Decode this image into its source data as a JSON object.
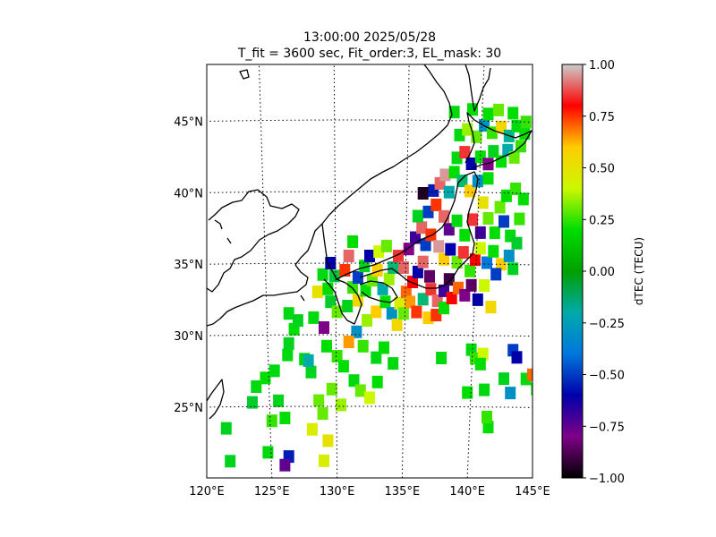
{
  "title_line1": "13:00:00 2025/05/28",
  "title_line2": "T_fit = 3600 sec, Fit_order:3, EL_mask: 30",
  "chart_data": {
    "type": "heatmap",
    "map_projection": "conic",
    "lon_range": [
      120,
      145
    ],
    "lat_range": [
      20,
      49
    ],
    "lon_ticks": [
      {
        "value": 120,
        "label": "120°E"
      },
      {
        "value": 125,
        "label": "125°E"
      },
      {
        "value": 130,
        "label": "130°E"
      },
      {
        "value": 135,
        "label": "135°E"
      },
      {
        "value": 140,
        "label": "140°E"
      },
      {
        "value": 145,
        "label": "145°E"
      }
    ],
    "lat_ticks": [
      {
        "value": 25,
        "label": "25°N"
      },
      {
        "value": 30,
        "label": "30°N"
      },
      {
        "value": 35,
        "label": "35°N"
      },
      {
        "value": 40,
        "label": "40°N"
      },
      {
        "value": 45,
        "label": "45°N"
      }
    ],
    "graticule": "dotted",
    "colorbar": {
      "label": "dTEC (TECU)",
      "range": [
        -1.0,
        1.0
      ],
      "colormap": "nipy_spectral",
      "ticks": [
        {
          "value": 1.0,
          "label": "1.00"
        },
        {
          "value": 0.75,
          "label": "0.75"
        },
        {
          "value": 0.5,
          "label": "0.50"
        },
        {
          "value": 0.25,
          "label": "0.25"
        },
        {
          "value": 0.0,
          "label": "0.00"
        },
        {
          "value": -0.25,
          "label": "−0.25"
        },
        {
          "value": -0.5,
          "label": "−0.50"
        },
        {
          "value": -0.75,
          "label": "−0.75"
        },
        {
          "value": -1.0,
          "label": "−1.00"
        }
      ]
    },
    "points": [
      [
        121.5,
        23.5,
        0.1
      ],
      [
        121.8,
        21.2,
        0.1
      ],
      [
        123.5,
        25.3,
        0.05
      ],
      [
        123.8,
        26.4,
        0.15
      ],
      [
        125.2,
        27.5,
        0.15
      ],
      [
        124.5,
        27.0,
        0.2
      ],
      [
        125.5,
        25.4,
        0.1
      ],
      [
        126.0,
        24.2,
        0.2
      ],
      [
        125.0,
        24.0,
        0.25
      ],
      [
        126.2,
        28.6,
        0.15
      ],
      [
        126.3,
        29.4,
        0.1
      ],
      [
        126.7,
        30.4,
        0.2
      ],
      [
        127.5,
        28.3,
        0.15
      ],
      [
        128.0,
        27.4,
        0.1
      ],
      [
        128.6,
        25.4,
        0.3
      ],
      [
        128.9,
        24.5,
        0.3
      ],
      [
        128.1,
        23.4,
        0.45
      ],
      [
        129.3,
        22.6,
        0.5
      ],
      [
        127.8,
        28.2,
        -0.2
      ],
      [
        126.3,
        31.5,
        0.15
      ],
      [
        127.0,
        31.0,
        0.1
      ],
      [
        128.2,
        31.2,
        0.15
      ],
      [
        129.0,
        30.5,
        -0.8
      ],
      [
        129.2,
        29.2,
        0.2
      ],
      [
        130.0,
        28.5,
        0.25
      ],
      [
        130.5,
        27.8,
        0.2
      ],
      [
        131.3,
        26.8,
        0.15
      ],
      [
        131.8,
        26.1,
        0.3
      ],
      [
        132.5,
        25.6,
        0.4
      ],
      [
        133.1,
        26.7,
        0.2
      ],
      [
        130.3,
        25.1,
        0.35
      ],
      [
        129.6,
        26.2,
        0.3
      ],
      [
        132.0,
        29.2,
        0.25
      ],
      [
        133.0,
        28.4,
        0.15
      ],
      [
        133.6,
        29.1,
        0.2
      ],
      [
        134.3,
        28.0,
        0.15
      ],
      [
        131.5,
        30.2,
        -0.3
      ],
      [
        130.9,
        29.5,
        0.65
      ],
      [
        124.7,
        21.8,
        0.15
      ],
      [
        126.3,
        21.5,
        -0.55
      ],
      [
        126.0,
        20.9,
        -0.75
      ],
      [
        129.0,
        21.2,
        0.45
      ],
      [
        128.5,
        33.0,
        0.5
      ],
      [
        128.9,
        34.2,
        0.15
      ],
      [
        129.5,
        35.0,
        -0.6
      ],
      [
        129.8,
        34.1,
        0.0
      ],
      [
        130.6,
        34.5,
        0.75
      ],
      [
        130.9,
        35.5,
        0.9
      ],
      [
        131.2,
        36.5,
        0.2
      ],
      [
        129.3,
        33.2,
        0.2
      ],
      [
        129.5,
        32.3,
        0.05
      ],
      [
        130.0,
        31.6,
        0.3
      ],
      [
        130.8,
        32.0,
        0.1
      ],
      [
        131.2,
        33.3,
        0.25
      ],
      [
        131.6,
        34.0,
        -0.5
      ],
      [
        132.1,
        34.8,
        0.1
      ],
      [
        132.5,
        35.5,
        -0.6
      ],
      [
        133.2,
        35.8,
        0.4
      ],
      [
        133.8,
        36.2,
        0.3
      ],
      [
        131.6,
        32.4,
        0.55
      ],
      [
        132.2,
        33.1,
        0.2
      ],
      [
        132.7,
        33.8,
        0.3
      ],
      [
        133.1,
        34.5,
        0.6
      ],
      [
        133.5,
        33.2,
        -0.2
      ],
      [
        134.0,
        33.9,
        0.35
      ],
      [
        134.3,
        34.7,
        -0.1
      ],
      [
        134.7,
        35.5,
        0.85
      ],
      [
        135.1,
        34.7,
        0.9
      ],
      [
        132.3,
        31.0,
        0.35
      ],
      [
        133.0,
        31.6,
        0.6
      ],
      [
        133.7,
        32.3,
        0.2
      ],
      [
        134.2,
        31.5,
        -0.3
      ],
      [
        134.8,
        32.2,
        0.45
      ],
      [
        135.3,
        33.0,
        0.7
      ],
      [
        135.8,
        33.7,
        0.8
      ],
      [
        136.2,
        34.4,
        -0.6
      ],
      [
        136.6,
        35.1,
        0.9
      ],
      [
        137.1,
        34.1,
        -0.85
      ],
      [
        134.6,
        30.7,
        0.55
      ],
      [
        135.1,
        31.5,
        0.3
      ],
      [
        135.6,
        32.3,
        0.65
      ],
      [
        136.1,
        31.6,
        0.75
      ],
      [
        136.6,
        32.5,
        -0.1
      ],
      [
        137.2,
        33.2,
        0.85
      ],
      [
        137.7,
        32.4,
        0.9
      ],
      [
        138.2,
        33.1,
        -0.7
      ],
      [
        138.6,
        33.9,
        -0.9
      ],
      [
        137.0,
        31.2,
        0.6
      ],
      [
        137.6,
        31.4,
        0.75
      ],
      [
        138.2,
        31.9,
        0.2
      ],
      [
        138.8,
        32.6,
        0.8
      ],
      [
        139.3,
        33.3,
        0.7
      ],
      [
        139.8,
        32.8,
        -0.8
      ],
      [
        140.3,
        33.5,
        -0.85
      ],
      [
        140.8,
        32.5,
        -0.6
      ],
      [
        141.3,
        33.5,
        0.4
      ],
      [
        141.8,
        32.0,
        0.55
      ],
      [
        135.5,
        36.0,
        -0.8
      ],
      [
        136.0,
        36.8,
        -0.7
      ],
      [
        136.5,
        37.5,
        0.9
      ],
      [
        136.8,
        36.3,
        -0.5
      ],
      [
        137.2,
        37.0,
        0.75
      ],
      [
        137.8,
        36.2,
        0.95
      ],
      [
        138.2,
        35.3,
        0.6
      ],
      [
        138.7,
        36.0,
        -0.6
      ],
      [
        139.2,
        35.1,
        0.3
      ],
      [
        139.7,
        35.8,
        0.85
      ],
      [
        140.2,
        34.5,
        0.25
      ],
      [
        140.6,
        35.3,
        0.8
      ],
      [
        141.0,
        36.1,
        0.4
      ],
      [
        141.5,
        35.1,
        -0.4
      ],
      [
        142.0,
        35.9,
        0.2
      ],
      [
        142.6,
        35.0,
        0.6
      ],
      [
        143.2,
        35.6,
        -0.3
      ],
      [
        142.2,
        34.3,
        -0.5
      ],
      [
        143.5,
        34.7,
        0.1
      ],
      [
        136.2,
        38.3,
        0.1
      ],
      [
        137.0,
        38.6,
        -0.5
      ],
      [
        137.6,
        39.1,
        0.75
      ],
      [
        138.2,
        38.3,
        0.9
      ],
      [
        138.6,
        37.4,
        -0.75
      ],
      [
        139.2,
        38.0,
        0.15
      ],
      [
        139.8,
        37.0,
        0.2
      ],
      [
        140.4,
        38.1,
        0.85
      ],
      [
        141.0,
        37.2,
        -0.7
      ],
      [
        141.6,
        38.2,
        0.3
      ],
      [
        142.1,
        37.2,
        0.2
      ],
      [
        142.8,
        38.0,
        -0.5
      ],
      [
        143.3,
        37.0,
        0.15
      ],
      [
        144.0,
        38.2,
        0.25
      ],
      [
        143.8,
        36.5,
        0.05
      ],
      [
        142.5,
        39.0,
        0.3
      ],
      [
        143.0,
        39.8,
        0.2
      ],
      [
        143.7,
        40.3,
        0.25
      ],
      [
        144.3,
        39.6,
        0.2
      ],
      [
        141.2,
        39.3,
        0.5
      ],
      [
        136.6,
        39.9,
        -0.95
      ],
      [
        137.4,
        40.1,
        -0.55
      ],
      [
        137.9,
        40.6,
        0.9
      ],
      [
        138.6,
        40.0,
        -0.2
      ],
      [
        138.3,
        41.2,
        0.95
      ],
      [
        139.0,
        41.4,
        0.2
      ],
      [
        139.6,
        40.8,
        -0.1
      ],
      [
        140.2,
        40.1,
        0.6
      ],
      [
        140.8,
        40.8,
        -0.3
      ],
      [
        141.6,
        41.0,
        0.2
      ],
      [
        139.2,
        42.4,
        0.15
      ],
      [
        139.8,
        42.8,
        0.85
      ],
      [
        140.3,
        42.0,
        -0.6
      ],
      [
        141.0,
        42.5,
        0.2
      ],
      [
        141.6,
        42.0,
        -0.8
      ],
      [
        142.0,
        42.9,
        0.1
      ],
      [
        142.6,
        42.2,
        0.2
      ],
      [
        143.1,
        43.0,
        -0.2
      ],
      [
        143.6,
        42.5,
        0.3
      ],
      [
        144.1,
        43.3,
        0.25
      ],
      [
        139.4,
        44.0,
        0.15
      ],
      [
        140.0,
        44.4,
        0.35
      ],
      [
        140.7,
        43.9,
        0.3
      ],
      [
        141.3,
        44.7,
        -0.3
      ],
      [
        141.9,
        44.2,
        0.25
      ],
      [
        142.6,
        44.6,
        0.55
      ],
      [
        143.2,
        44.0,
        -0.15
      ],
      [
        143.8,
        44.7,
        0.15
      ],
      [
        144.4,
        44.2,
        0.2
      ],
      [
        143.5,
        45.6,
        0.2
      ],
      [
        139.0,
        45.6,
        0.15
      ],
      [
        140.4,
        45.8,
        0.2
      ],
      [
        141.6,
        45.5,
        0.2
      ],
      [
        142.4,
        45.8,
        0.3
      ],
      [
        144.5,
        45.0,
        0.25
      ],
      [
        140.3,
        29.0,
        0.15
      ],
      [
        140.6,
        28.4,
        0.25
      ],
      [
        141.2,
        28.7,
        0.4
      ],
      [
        141.0,
        28.0,
        0.2
      ],
      [
        142.8,
        27.0,
        0.1
      ],
      [
        143.5,
        29.0,
        -0.5
      ],
      [
        143.8,
        28.5,
        -0.6
      ],
      [
        138.0,
        28.4,
        0.15
      ],
      [
        140.0,
        26.0,
        0.2
      ],
      [
        141.3,
        26.2,
        0.15
      ],
      [
        143.3,
        26.0,
        -0.3
      ],
      [
        144.5,
        27.0,
        0.15
      ],
      [
        145.0,
        27.3,
        0.7
      ],
      [
        145.3,
        26.3,
        0.2
      ],
      [
        141.6,
        23.6,
        0.2
      ],
      [
        141.5,
        24.3,
        0.25
      ]
    ]
  }
}
